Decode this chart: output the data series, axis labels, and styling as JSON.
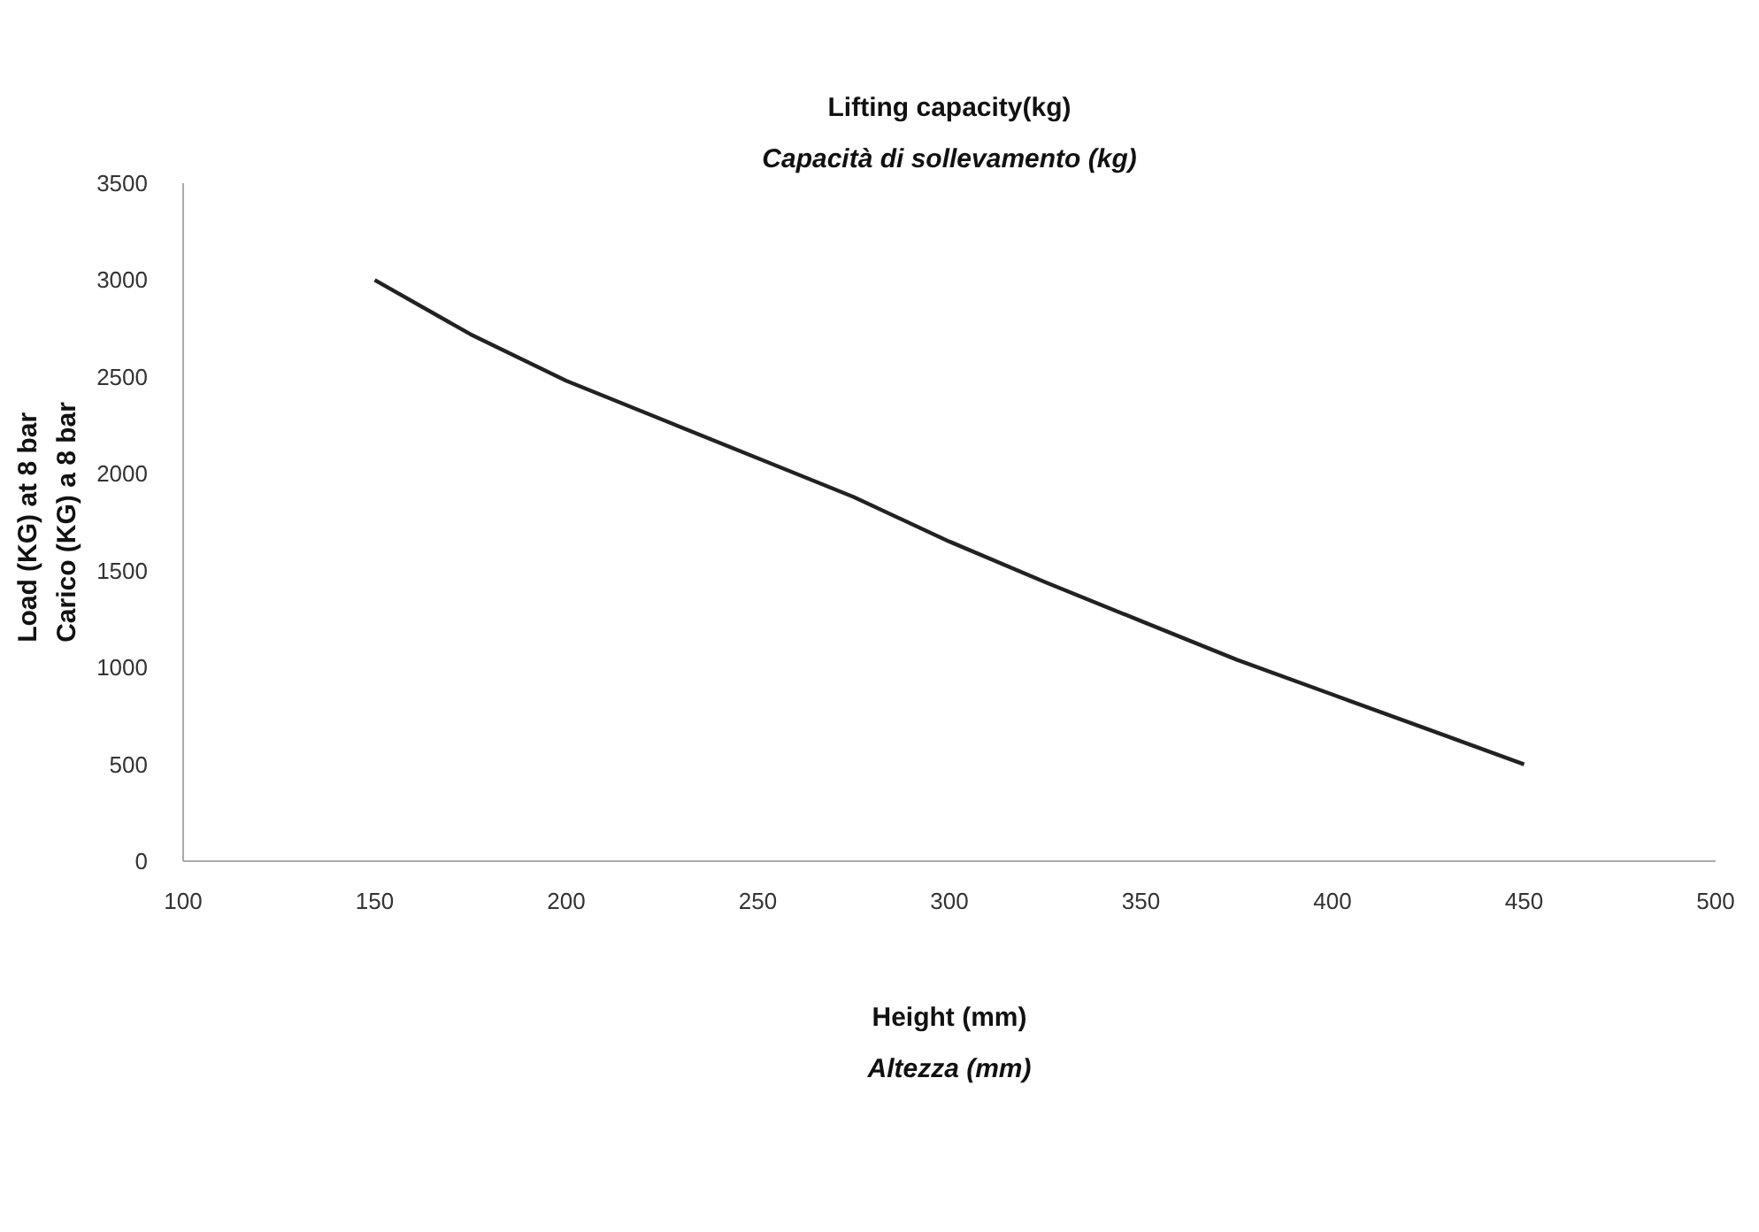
{
  "chart_data": {
    "type": "line",
    "title": "Lifting capacity(kg)",
    "subtitle": "Capacità di sollevamento (kg)",
    "xlabel": "Height (mm)\nAltezza (mm)",
    "ylabel": "Load (KG) at 8 bar\nCarico (KG) a 8 bar",
    "x": [
      150,
      175,
      200,
      225,
      250,
      275,
      300,
      325,
      350,
      375,
      400,
      425,
      450
    ],
    "series": [
      {
        "color": "#222222",
        "values": [
          3000,
          2720,
          2480,
          2280,
          2080,
          1880,
          1650,
          1440,
          1240,
          1040,
          860,
          680,
          500
        ]
      }
    ],
    "xlim": [
      100,
      500
    ],
    "xticks": [
      100,
      150,
      200,
      250,
      300,
      350,
      400,
      450,
      500
    ],
    "ylim": [
      0,
      3500
    ],
    "yticks": [
      0,
      500,
      1000,
      1500,
      2000,
      2500,
      3000,
      3500
    ],
    "grid": false,
    "marker": "none",
    "line_style": "solid"
  }
}
